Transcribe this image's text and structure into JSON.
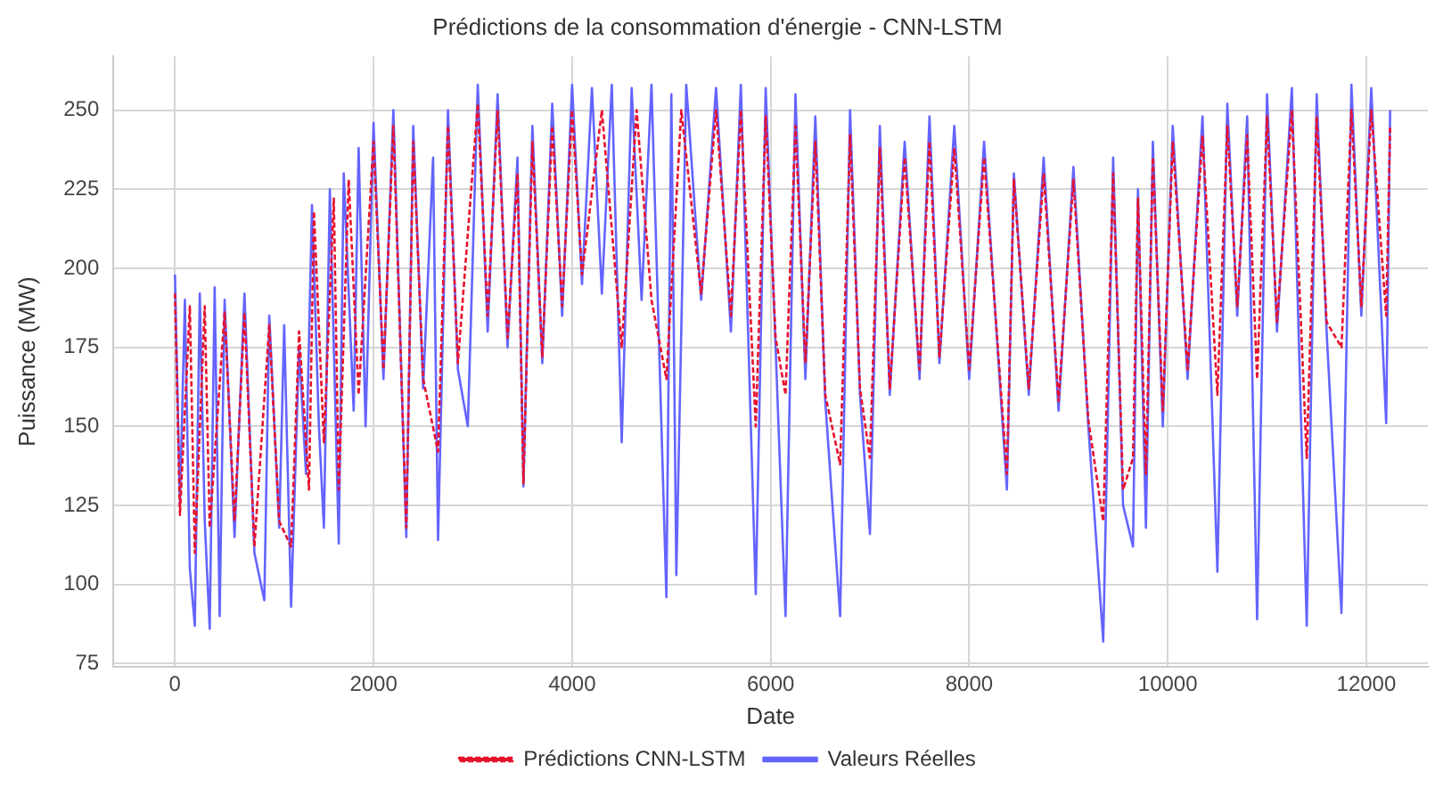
{
  "chart_data": {
    "type": "line",
    "title": "Prédictions de la consommation d'énergie - CNN-LSTM",
    "xlabel": "Date",
    "ylabel": "Puissance (MW)",
    "xlim": [
      -620,
      12620
    ],
    "xticks": [
      0,
      2000,
      4000,
      6000,
      8000,
      10000,
      12000
    ],
    "ylim": [
      74,
      267
    ],
    "yticks": [
      75,
      100,
      125,
      150,
      175,
      200,
      225,
      250
    ],
    "grid": true,
    "legend": "bottom",
    "marker": "none",
    "series": [
      {
        "name": "Valeurs Réelles",
        "color": "#6464ff",
        "line_style": "solid",
        "x": [
          0,
          50,
          100,
          150,
          200,
          250,
          300,
          350,
          400,
          450,
          500,
          600,
          700,
          800,
          900,
          950,
          1050,
          1100,
          1170,
          1250,
          1320,
          1380,
          1450,
          1500,
          1560,
          1650,
          1700,
          1800,
          1850,
          1920,
          2000,
          2100,
          2200,
          2330,
          2400,
          2500,
          2600,
          2650,
          2750,
          2850,
          2950,
          3050,
          3150,
          3250,
          3350,
          3450,
          3510,
          3600,
          3700,
          3800,
          3900,
          4000,
          4100,
          4200,
          4300,
          4400,
          4500,
          4600,
          4700,
          4800,
          4950,
          5000,
          5050,
          5150,
          5300,
          5450,
          5600,
          5700,
          5850,
          5950,
          6050,
          6150,
          6250,
          6350,
          6450,
          6550,
          6700,
          6800,
          6900,
          7000,
          7100,
          7200,
          7350,
          7500,
          7600,
          7700,
          7850,
          8000,
          8150,
          8300,
          8380,
          8450,
          8600,
          8750,
          8900,
          9050,
          9200,
          9350,
          9450,
          9550,
          9650,
          9700,
          9780,
          9850,
          9950,
          10050,
          10200,
          10350,
          10500,
          10600,
          10700,
          10800,
          10900,
          11000,
          11100,
          11250,
          11400,
          11500,
          11600,
          11750,
          11850,
          11950,
          12050,
          12200,
          12240
        ],
        "values": [
          198,
          125,
          190,
          105,
          87,
          192,
          120,
          86,
          194,
          90,
          190,
          115,
          192,
          110,
          95,
          185,
          118,
          182,
          93,
          175,
          135,
          220,
          150,
          118,
          225,
          113,
          230,
          155,
          238,
          150,
          246,
          165,
          250,
          115,
          245,
          162,
          235,
          114,
          250,
          168,
          150,
          258,
          180,
          255,
          175,
          235,
          131,
          245,
          170,
          252,
          185,
          258,
          195,
          257,
          192,
          258,
          145,
          257,
          190,
          258,
          96,
          255,
          103,
          258,
          190,
          257,
          180,
          258,
          97,
          257,
          175,
          90,
          255,
          165,
          248,
          158,
          90,
          250,
          160,
          116,
          245,
          160,
          240,
          165,
          248,
          170,
          245,
          165,
          240,
          168,
          130,
          230,
          160,
          235,
          155,
          232,
          150,
          82,
          235,
          125,
          112,
          225,
          118,
          240,
          150,
          245,
          165,
          248,
          104,
          252,
          185,
          248,
          89,
          255,
          180,
          257,
          87,
          255,
          180,
          91,
          258,
          185,
          257,
          151,
          250
        ]
      },
      {
        "name": "Prédictions CNN-LSTM",
        "color": "#e8112d",
        "line_style": "dashed",
        "x": [
          0,
          50,
          150,
          200,
          300,
          350,
          500,
          600,
          700,
          800,
          950,
          1050,
          1170,
          1250,
          1350,
          1400,
          1500,
          1600,
          1650,
          1750,
          1850,
          2000,
          2100,
          2200,
          2330,
          2400,
          2500,
          2650,
          2750,
          2850,
          3050,
          3150,
          3250,
          3350,
          3450,
          3510,
          3600,
          3700,
          3800,
          3900,
          4000,
          4100,
          4300,
          4500,
          4650,
          4800,
          4950,
          5100,
          5300,
          5450,
          5600,
          5700,
          5850,
          5950,
          6050,
          6150,
          6250,
          6350,
          6450,
          6550,
          6700,
          6800,
          6900,
          7000,
          7100,
          7200,
          7350,
          7500,
          7600,
          7700,
          7850,
          8000,
          8150,
          8300,
          8380,
          8450,
          8600,
          8750,
          8900,
          9050,
          9200,
          9350,
          9450,
          9550,
          9650,
          9700,
          9780,
          9850,
          9950,
          10050,
          10200,
          10350,
          10500,
          10600,
          10700,
          10800,
          10900,
          11000,
          11100,
          11250,
          11400,
          11500,
          11600,
          11750,
          11850,
          11950,
          12050,
          12200,
          12240
        ],
        "values": [
          192,
          122,
          188,
          110,
          188,
          118,
          186,
          120,
          186,
          112,
          182,
          120,
          112,
          180,
          130,
          218,
          145,
          222,
          130,
          228,
          160,
          240,
          168,
          245,
          118,
          240,
          165,
          142,
          245,
          170,
          252,
          185,
          250,
          178,
          230,
          132,
          240,
          172,
          245,
          188,
          250,
          198,
          250,
          175,
          250,
          190,
          165,
          250,
          192,
          250,
          185,
          250,
          150,
          248,
          178,
          160,
          245,
          170,
          240,
          160,
          138,
          242,
          162,
          140,
          238,
          162,
          235,
          168,
          240,
          172,
          238,
          168,
          235,
          170,
          135,
          228,
          162,
          230,
          158,
          228,
          152,
          120,
          230,
          130,
          140,
          222,
          135,
          235,
          155,
          240,
          168,
          242,
          160,
          245,
          188,
          242,
          165,
          248,
          183,
          250,
          140,
          248,
          183,
          175,
          250,
          188,
          250,
          185,
          245
        ]
      }
    ]
  }
}
